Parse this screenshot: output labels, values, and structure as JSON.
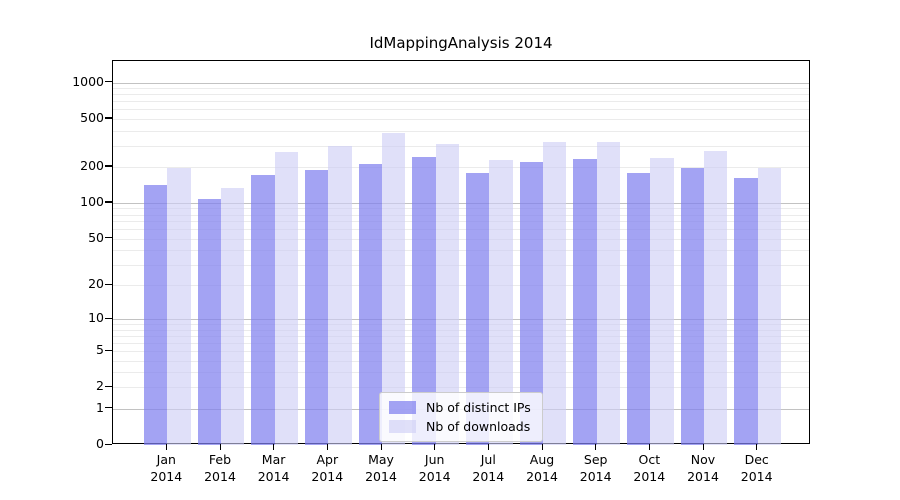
{
  "chart_data": {
    "type": "bar",
    "title": "IdMappingAnalysis 2014",
    "x_months": [
      "Jan",
      "Feb",
      "Mar",
      "Apr",
      "May",
      "Jun",
      "Jul",
      "Aug",
      "Sep",
      "Oct",
      "Nov",
      "Dec"
    ],
    "x_year": "2014",
    "categories": [
      "Jan 2014",
      "Feb 2014",
      "Mar 2014",
      "Apr 2014",
      "May 2014",
      "Jun 2014",
      "Jul 2014",
      "Aug 2014",
      "Sep 2014",
      "Oct 2014",
      "Nov 2014",
      "Dec 2014"
    ],
    "series": [
      {
        "name": "Nb of distinct IPs",
        "values": [
          140,
          107,
          172,
          190,
          211,
          240,
          178,
          220,
          234,
          178,
          196,
          162
        ],
        "fill": "rgba(128,128,238,0.72)"
      },
      {
        "name": "Nb of downloads",
        "values": [
          195,
          132,
          266,
          298,
          380,
          312,
          230,
          322,
          320,
          238,
          270,
          196
        ],
        "fill": "rgba(205,205,245,0.62)"
      }
    ],
    "y_ticks": [
      0,
      1,
      2,
      5,
      10,
      20,
      50,
      100,
      200,
      500,
      1000
    ],
    "y_scale": "log10(1+x)",
    "ylim": [
      0,
      1500
    ],
    "xlabel": "",
    "ylabel": "",
    "grid": true,
    "legend_position": "lower-center",
    "colors": {
      "bar_dark_apparent": "#a5a5f0",
      "bar_light_apparent": "#dedef8",
      "grid_minor": "#ebebeb",
      "grid_major": "#c2c2c2",
      "frame": "#000000",
      "legend_border": "#cccccc"
    }
  }
}
